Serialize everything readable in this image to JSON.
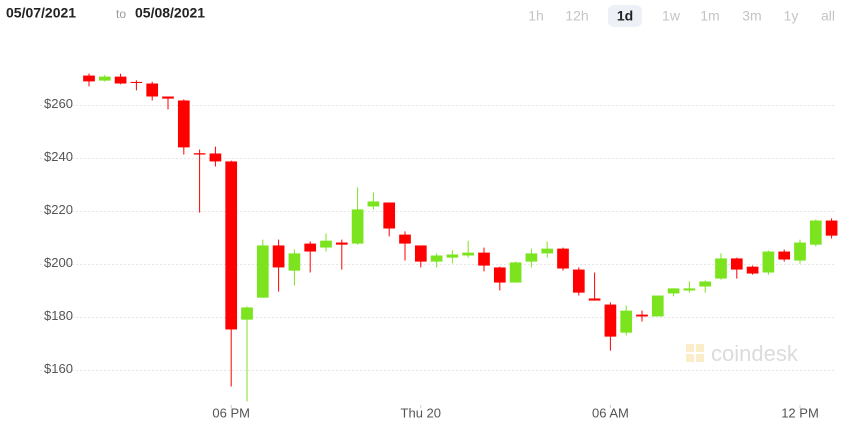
{
  "header": {
    "from": "05/07/2021",
    "to_word": "to",
    "to": "05/08/2021",
    "ranges": [
      "1h",
      "12h",
      "1d",
      "1w",
      "1m",
      "3m",
      "1y",
      "all"
    ],
    "selected": "1d"
  },
  "watermark": "coindesk",
  "chart_data": {
    "type": "candlestick",
    "open": [
      271.3,
      269.4,
      270.9,
      268.9,
      268.3,
      263.4,
      261.9,
      242.0,
      241.9,
      238.9,
      179.2,
      187.5,
      207.2,
      197.7,
      207.9,
      206.4,
      208.3,
      207.9,
      221.9,
      223.4,
      211.3,
      207.2,
      201.1,
      202.6,
      203.4,
      204.5,
      198.9,
      193.2,
      201.1,
      204.2,
      206.0,
      198.1,
      187.2,
      184.9,
      174.3,
      181.1,
      180.4,
      189.1,
      190.2,
      191.7,
      194.7,
      202.3,
      199.2,
      197.0,
      204.9,
      201.5,
      207.5,
      216.6
    ],
    "high": [
      272.1,
      271.5,
      272.0,
      269.5,
      269.0,
      263.4,
      262.3,
      243.4,
      244.5,
      239.2,
      184.2,
      209.4,
      209.4,
      205.7,
      208.7,
      211.7,
      209.4,
      229.1,
      227.2,
      223.4,
      212.5,
      207.2,
      204.2,
      205.3,
      209.0,
      206.4,
      199.2,
      201.1,
      206.0,
      208.7,
      206.4,
      198.9,
      197.0,
      185.7,
      184.5,
      182.6,
      188.3,
      191.0,
      193.6,
      194.0,
      204.2,
      202.6,
      199.6,
      205.3,
      205.7,
      209.4,
      217.0,
      217.4
    ],
    "low": [
      267.2,
      269.0,
      268.0,
      265.7,
      261.9,
      258.5,
      241.5,
      219.6,
      237.0,
      154.0,
      148.3,
      187.5,
      189.8,
      192.1,
      197.0,
      204.9,
      198.1,
      207.5,
      220.8,
      210.6,
      201.5,
      198.9,
      198.9,
      200.4,
      202.6,
      197.4,
      190.2,
      193.2,
      198.9,
      202.6,
      197.7,
      188.3,
      186.4,
      167.5,
      173.2,
      178.5,
      180.4,
      188.0,
      189.4,
      189.4,
      194.3,
      194.7,
      196.2,
      196.2,
      201.1,
      200.4,
      206.8,
      209.8
    ],
    "close": [
      269.1,
      270.9,
      268.3,
      268.5,
      263.4,
      262.6,
      244.2,
      241.5,
      238.9,
      175.5,
      183.8,
      207.2,
      198.9,
      204.2,
      204.9,
      209.0,
      207.5,
      220.8,
      223.8,
      213.6,
      207.9,
      201.1,
      203.4,
      203.8,
      204.5,
      199.6,
      193.2,
      200.8,
      204.2,
      206.0,
      198.5,
      189.4,
      186.4,
      172.8,
      182.6,
      180.4,
      188.3,
      191.0,
      191.0,
      193.6,
      202.3,
      198.1,
      196.6,
      204.9,
      201.9,
      208.3,
      216.6,
      210.9
    ],
    "up_color": "#7be41f",
    "down_color": "#ff0000",
    "xlim": [
      -0.5,
      47.5
    ],
    "xticks": [
      {
        "value": 9,
        "label": "06 PM"
      },
      {
        "value": 21,
        "label": "Thu 20"
      },
      {
        "value": 33,
        "label": "06 AM"
      },
      {
        "value": 45,
        "label": "12 PM"
      }
    ],
    "ylim": [
      147,
      280
    ],
    "yticks": [
      {
        "value": 160,
        "label": "$160"
      },
      {
        "value": 180,
        "label": "$180"
      },
      {
        "value": 200,
        "label": "$200"
      },
      {
        "value": 220,
        "label": "$220"
      },
      {
        "value": 240,
        "label": "$240"
      },
      {
        "value": 260,
        "label": "$260"
      }
    ],
    "grid": true
  }
}
